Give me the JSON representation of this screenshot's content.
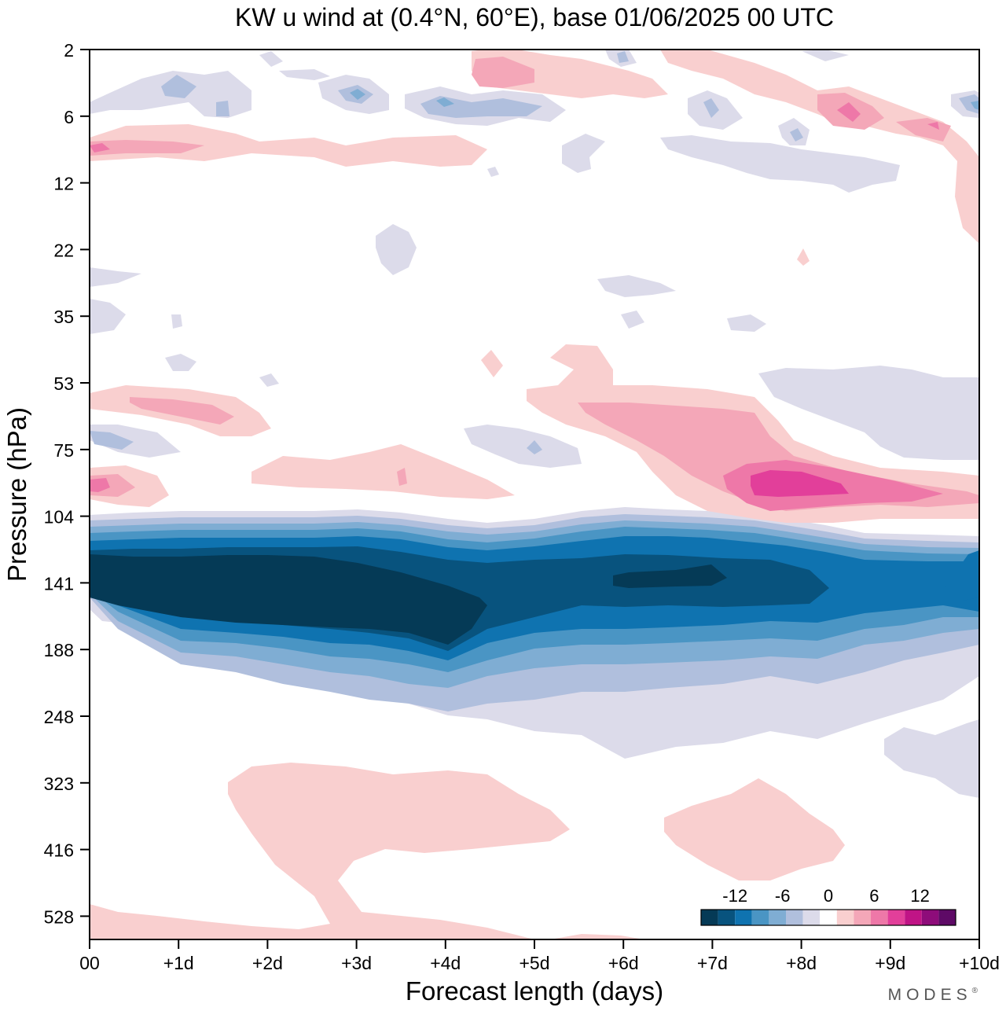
{
  "chart_data": {
    "type": "heatmap",
    "title": "KW u wind at (0.4°N, 60°E),  base 01/06/2025  00 UTC",
    "xlabel": "Forecast length (days)",
    "ylabel": "Pressure (hPa)",
    "x_ticks": [
      "00",
      "+1d",
      "+2d",
      "+3d",
      "+4d",
      "+5d",
      "+6d",
      "+7d",
      "+8d",
      "+9d",
      "+10d"
    ],
    "x_range_days": [
      0,
      10
    ],
    "y_ticks": [
      "2",
      "6",
      "12",
      "22",
      "35",
      "53",
      "75",
      "104",
      "141",
      "188",
      "248",
      "323",
      "416",
      "528"
    ],
    "y_scale": "log-pressure, increasing downward",
    "colorbar": {
      "labels": [
        "-12",
        "-6",
        "0",
        "6",
        "12"
      ],
      "levels": [
        -16,
        -14,
        -12,
        -10,
        -8,
        -6,
        -4,
        -2,
        2,
        4,
        6,
        8,
        10,
        12,
        14,
        16
      ],
      "colors": [
        "#053a56",
        "#08537e",
        "#0f73b0",
        "#4a95c4",
        "#7fadd3",
        "#b0bfdd",
        "#dcdbea",
        "#ffffff",
        "#f9cfcf",
        "#f4a7b8",
        "#ee78a8",
        "#e23f9a",
        "#c01486",
        "#8e0c7a",
        "#5e0a66"
      ],
      "placement": "bottom-right"
    },
    "features": [
      {
        "label": "upper-tropospheric easterly jet core",
        "pressure_hPa_center": 141,
        "min_value": -16,
        "x_days": [
          0,
          4.5
        ]
      },
      {
        "label": "westerly maximum",
        "pressure_hPa_center": 90,
        "max_value": 12,
        "x_days": [
          7.3,
          9.2
        ]
      }
    ]
  },
  "brand": "MODES",
  "brand_mark": "®"
}
